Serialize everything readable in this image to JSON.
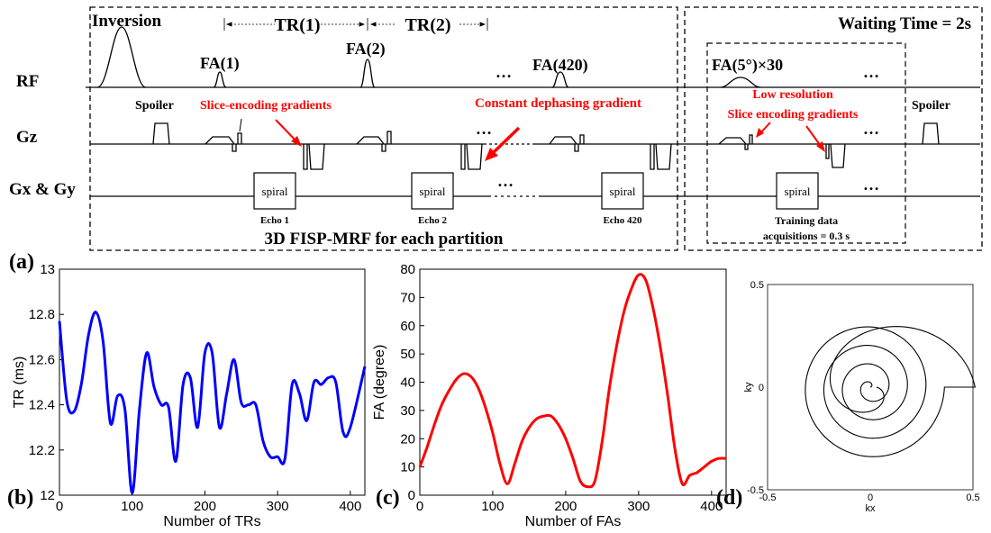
{
  "colors": {
    "annotation": "#ff0000",
    "tr_curve": "#0000ff",
    "fa_curve": "#ff0000",
    "ink": "#000000"
  },
  "sequence": {
    "inversion": "Inversion",
    "tr1": "TR(1)",
    "tr2": "TR(2)",
    "waiting": "Waiting Time = 2s",
    "rows": {
      "rf": "RF",
      "gz": "Gz",
      "gxgy": "Gx & Gy"
    },
    "fa1": "FA(1)",
    "fa2": "FA(2)",
    "fa420": "FA(420)",
    "fa5": "FA(5°)×30",
    "dots": "…",
    "spoiler_left": "Spoiler",
    "spoiler_right": "Spoiler",
    "slice_enc": "Slice-encoding gradients",
    "const_deph": "Constant dephasing gradient",
    "lowres_1": "Low resolution",
    "lowres_2": "Slice encoding gradients",
    "spiral": "spiral",
    "echo1": "Echo 1",
    "echo2": "Echo 2",
    "echo420": "Echo 420",
    "training_1": "Training data",
    "training_2": "acquisitions =  0.3 s",
    "title": "3D FISP-MRF for each partition"
  },
  "panel_labels": {
    "a": "(a)",
    "b": "(b)",
    "c": "(c)",
    "d": "(d)"
  },
  "chart_data": [
    {
      "type": "line",
      "panel": "b",
      "xlabel": "Number of TRs",
      "ylabel": "TR (ms)",
      "xlim": [
        0,
        420
      ],
      "ylim": [
        12,
        13
      ],
      "xticks": [
        0,
        100,
        200,
        300,
        400
      ],
      "yticks": [
        12,
        12.2,
        12.4,
        12.6,
        12.8,
        13
      ],
      "x": [
        0,
        10,
        20,
        30,
        40,
        50,
        60,
        70,
        80,
        90,
        100,
        110,
        120,
        130,
        140,
        150,
        160,
        170,
        180,
        190,
        200,
        210,
        220,
        230,
        240,
        250,
        260,
        270,
        280,
        290,
        300,
        310,
        320,
        330,
        340,
        350,
        360,
        370,
        380,
        390,
        400,
        420
      ],
      "y": [
        12.77,
        12.42,
        12.37,
        12.49,
        12.71,
        12.81,
        12.68,
        12.32,
        12.44,
        12.38,
        12.01,
        12.38,
        12.63,
        12.48,
        12.4,
        12.39,
        12.15,
        12.49,
        12.52,
        12.3,
        12.63,
        12.63,
        12.3,
        12.45,
        12.6,
        12.41,
        12.4,
        12.4,
        12.24,
        12.17,
        12.17,
        12.16,
        12.49,
        12.45,
        12.33,
        12.5,
        12.49,
        12.52,
        12.5,
        12.28,
        12.3,
        12.57
      ],
      "grid": false
    },
    {
      "type": "line",
      "panel": "c",
      "xlabel": "Number of FAs",
      "ylabel": "FA (degree)",
      "xlim": [
        0,
        420
      ],
      "ylim": [
        0,
        80
      ],
      "xticks": [
        0,
        100,
        200,
        300,
        400
      ],
      "yticks": [
        0,
        10,
        20,
        30,
        40,
        50,
        60,
        70,
        80
      ],
      "x": [
        0,
        10,
        20,
        30,
        40,
        50,
        60,
        70,
        80,
        90,
        100,
        110,
        120,
        130,
        140,
        150,
        160,
        170,
        180,
        190,
        200,
        210,
        220,
        230,
        240,
        250,
        260,
        270,
        280,
        290,
        300,
        310,
        320,
        330,
        340,
        350,
        360,
        370,
        380,
        390,
        400,
        410,
        420
      ],
      "y": [
        10,
        17,
        25,
        32,
        37,
        41,
        43,
        42,
        38,
        31,
        22,
        11,
        4,
        11,
        19,
        24,
        27,
        28,
        28,
        25,
        20,
        13,
        5,
        3,
        5,
        19,
        38,
        53,
        65,
        73,
        78,
        76,
        66,
        52,
        35,
        16,
        4,
        7,
        8,
        10,
        12,
        13,
        13
      ],
      "grid": false
    },
    {
      "type": "line",
      "panel": "d",
      "xlabel": "kx",
      "ylabel": "ky",
      "xlim": [
        -0.5,
        0.5
      ],
      "ylim": [
        -0.5,
        0.5
      ],
      "xtick_labels": [
        "-0.5",
        "0",
        "0.5"
      ],
      "ytick_labels": [
        "-0.5",
        "0",
        "0.5"
      ],
      "trajectory": "spiral",
      "spiral_turns": 4,
      "max_radius": 0.38,
      "grid": false
    }
  ]
}
